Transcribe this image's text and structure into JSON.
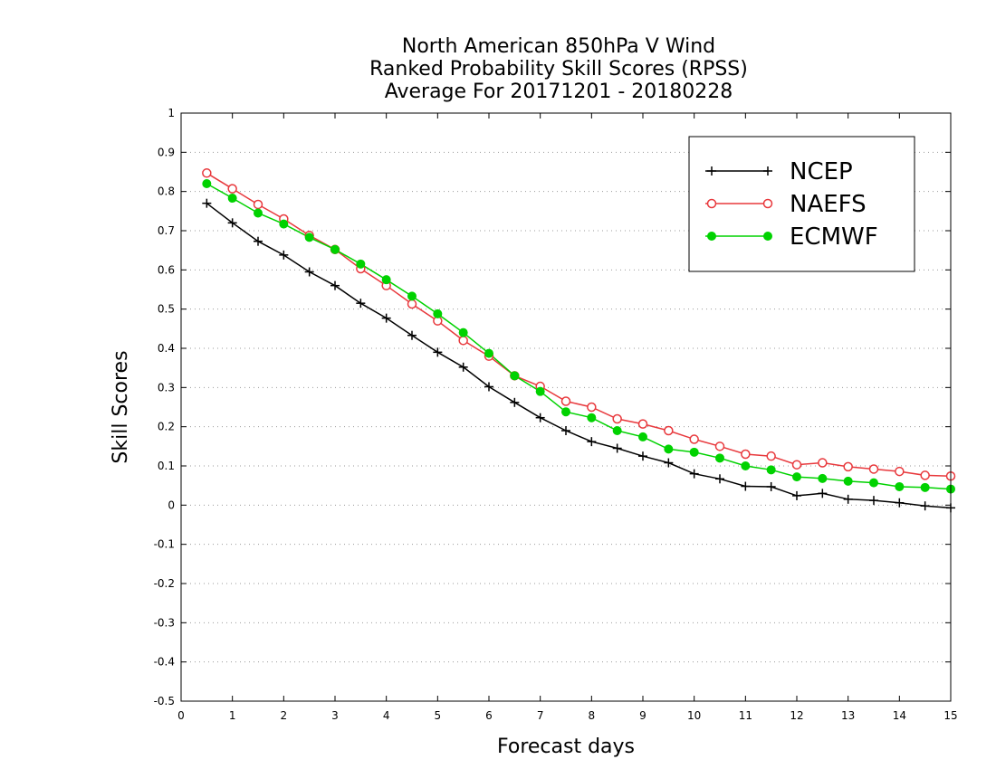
{
  "chart_data": {
    "type": "line",
    "title": [
      "North American 850hPa V Wind",
      "Ranked Probability Skill Scores (RPSS)",
      "Average For 20171201 - 20180228"
    ],
    "xlabel": "Forecast days",
    "ylabel": "Skill Scores",
    "xlim": [
      0,
      15
    ],
    "ylim": [
      -0.5,
      1
    ],
    "xticks": [
      "0",
      "1",
      "2",
      "3",
      "4",
      "5",
      "6",
      "7",
      "8",
      "9",
      "10",
      "11",
      "12",
      "13",
      "14",
      "15"
    ],
    "yticks": [
      "-0.5",
      "-0.4",
      "-0.3",
      "-0.2",
      "-0.1",
      "0",
      "0.1",
      "0.2",
      "0.3",
      "0.4",
      "0.5",
      "0.6",
      "0.7",
      "0.8",
      "0.9",
      "1"
    ],
    "grid": "horizontal-dotted",
    "legend_position": "top-right",
    "x": [
      0.5,
      1,
      1.5,
      2,
      2.5,
      3,
      3.5,
      4,
      4.5,
      5,
      5.5,
      6,
      6.5,
      7,
      7.5,
      8,
      8.5,
      9,
      9.5,
      10,
      10.5,
      11,
      11.5,
      12,
      12.5,
      13,
      13.5,
      14,
      14.5,
      15
    ],
    "series": [
      {
        "name": "NCEP",
        "color": "#000000",
        "marker": "plus",
        "values": [
          0.77,
          0.72,
          0.673,
          0.638,
          0.595,
          0.56,
          0.515,
          0.477,
          0.433,
          0.39,
          0.352,
          0.302,
          0.262,
          0.223,
          0.19,
          0.162,
          0.145,
          0.125,
          0.108,
          0.08,
          0.067,
          0.048,
          0.047,
          0.024,
          0.03,
          0.015,
          0.012,
          0.006,
          -0.002,
          -0.007
        ]
      },
      {
        "name": "NAEFS",
        "color": "#e8383c",
        "marker": "open-circle",
        "values": [
          0.847,
          0.807,
          0.767,
          0.73,
          0.688,
          0.652,
          0.603,
          0.56,
          0.513,
          0.47,
          0.42,
          0.38,
          0.33,
          0.303,
          0.265,
          0.25,
          0.22,
          0.207,
          0.19,
          0.168,
          0.15,
          0.13,
          0.125,
          0.103,
          0.108,
          0.098,
          0.092,
          0.086,
          0.076,
          0.074
        ]
      },
      {
        "name": "ECMWF",
        "color": "#00d200",
        "marker": "filled-circle",
        "values": [
          0.82,
          0.783,
          0.745,
          0.717,
          0.683,
          0.652,
          0.615,
          0.575,
          0.533,
          0.488,
          0.44,
          0.387,
          0.33,
          0.29,
          0.238,
          0.223,
          0.19,
          0.174,
          0.143,
          0.135,
          0.12,
          0.1,
          0.09,
          0.072,
          0.068,
          0.061,
          0.057,
          0.047,
          0.045,
          0.041
        ]
      }
    ]
  }
}
